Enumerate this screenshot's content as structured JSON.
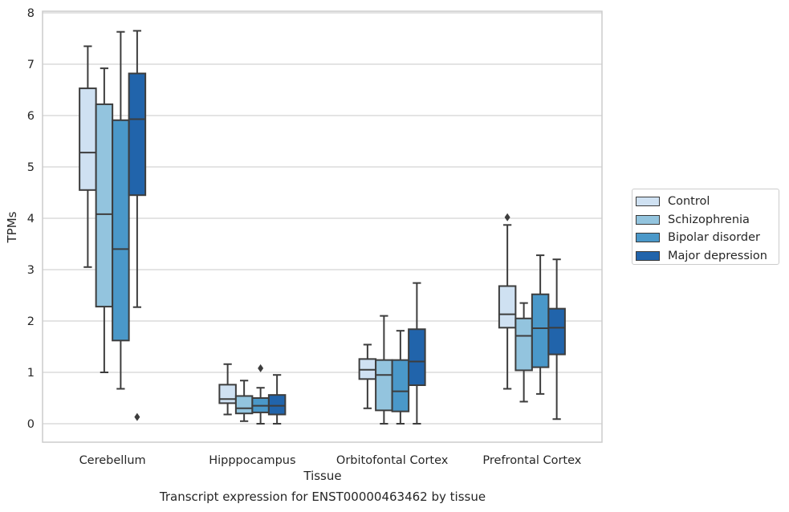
{
  "chart_data": {
    "type": "box",
    "xlabel": "Tissue",
    "ylabel": "TPMs",
    "ylim": [
      -0.35,
      8.05
    ],
    "yticks": [
      0,
      1,
      2,
      3,
      4,
      5,
      6,
      7,
      8
    ],
    "grid": "horizontal",
    "legend_position": "right",
    "categories": [
      "Cerebellum",
      "Hipppocampus",
      "Orbitofontal Cortex",
      "Prefrontal Cortex"
    ],
    "series": [
      {
        "name": "Control",
        "color": "#cfe1f2",
        "boxes": [
          {
            "whislo": 3.05,
            "q1": 4.55,
            "med": 5.28,
            "q3": 6.53,
            "whishi": 7.35,
            "fliers": []
          },
          {
            "whislo": 0.18,
            "q1": 0.4,
            "med": 0.48,
            "q3": 0.76,
            "whishi": 1.16,
            "fliers": []
          },
          {
            "whislo": 0.3,
            "q1": 0.87,
            "med": 1.05,
            "q3": 1.26,
            "whishi": 1.54,
            "fliers": []
          },
          {
            "whislo": 0.68,
            "q1": 1.87,
            "med": 2.13,
            "q3": 2.68,
            "whishi": 3.87,
            "fliers": [
              4.02
            ]
          }
        ]
      },
      {
        "name": "Schizophrenia",
        "color": "#93c4de",
        "boxes": [
          {
            "whislo": 1.0,
            "q1": 2.28,
            "med": 4.08,
            "q3": 6.22,
            "whishi": 6.92,
            "fliers": []
          },
          {
            "whislo": 0.05,
            "q1": 0.2,
            "med": 0.3,
            "q3": 0.54,
            "whishi": 0.84,
            "fliers": []
          },
          {
            "whislo": 0.0,
            "q1": 0.26,
            "med": 0.95,
            "q3": 1.24,
            "whishi": 2.1,
            "fliers": []
          },
          {
            "whislo": 0.43,
            "q1": 1.04,
            "med": 1.71,
            "q3": 2.05,
            "whishi": 2.35,
            "fliers": []
          }
        ]
      },
      {
        "name": "Bipolar disorder",
        "color": "#4a98c9",
        "boxes": [
          {
            "whislo": 0.68,
            "q1": 1.62,
            "med": 3.4,
            "q3": 5.91,
            "whishi": 7.63,
            "fliers": []
          },
          {
            "whislo": 0.0,
            "q1": 0.22,
            "med": 0.35,
            "q3": 0.5,
            "whishi": 0.7,
            "fliers": [
              1.08
            ]
          },
          {
            "whislo": 0.0,
            "q1": 0.24,
            "med": 0.63,
            "q3": 1.24,
            "whishi": 1.81,
            "fliers": []
          },
          {
            "whislo": 0.58,
            "q1": 1.1,
            "med": 1.86,
            "q3": 2.52,
            "whishi": 3.28,
            "fliers": []
          }
        ]
      },
      {
        "name": "Major depression",
        "color": "#2164ab",
        "boxes": [
          {
            "whislo": 2.27,
            "q1": 4.45,
            "med": 5.93,
            "q3": 6.82,
            "whishi": 7.65,
            "fliers": [
              0.13
            ]
          },
          {
            "whislo": 0.0,
            "q1": 0.18,
            "med": 0.35,
            "q3": 0.56,
            "whishi": 0.95,
            "fliers": []
          },
          {
            "whislo": 0.0,
            "q1": 0.75,
            "med": 1.21,
            "q3": 1.84,
            "whishi": 2.74,
            "fliers": []
          },
          {
            "whislo": 0.09,
            "q1": 1.35,
            "med": 1.87,
            "q3": 2.24,
            "whishi": 3.2,
            "fliers": []
          }
        ]
      }
    ]
  },
  "caption": "Transcript expression for ENST00000463462 by tissue"
}
